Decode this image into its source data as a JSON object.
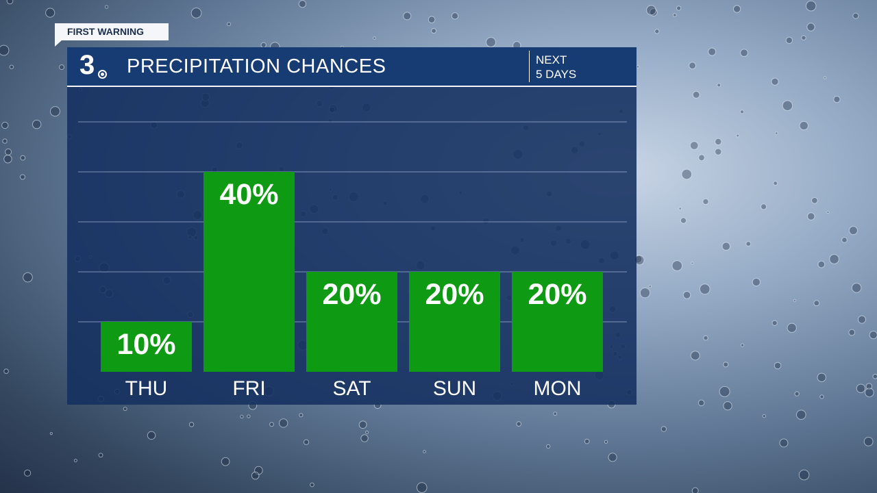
{
  "banner": {
    "label": "FIRST WARNING"
  },
  "header": {
    "logo": "3",
    "title": "PRECIPITATION CHANCES",
    "period_line1": "NEXT",
    "period_line2": "5 DAYS"
  },
  "colors": {
    "bar": "#0e9b13",
    "panel": "#143060",
    "header": "#173b73",
    "text": "#ffffff"
  },
  "chart_data": {
    "type": "bar",
    "categories": [
      "THU",
      "FRI",
      "SAT",
      "SUN",
      "MON"
    ],
    "values": [
      10,
      40,
      20,
      20,
      20
    ],
    "value_labels": [
      "10%",
      "40%",
      "20%",
      "20%",
      "20%"
    ],
    "ylim": [
      0,
      100
    ],
    "grid": true,
    "unit": "%"
  }
}
